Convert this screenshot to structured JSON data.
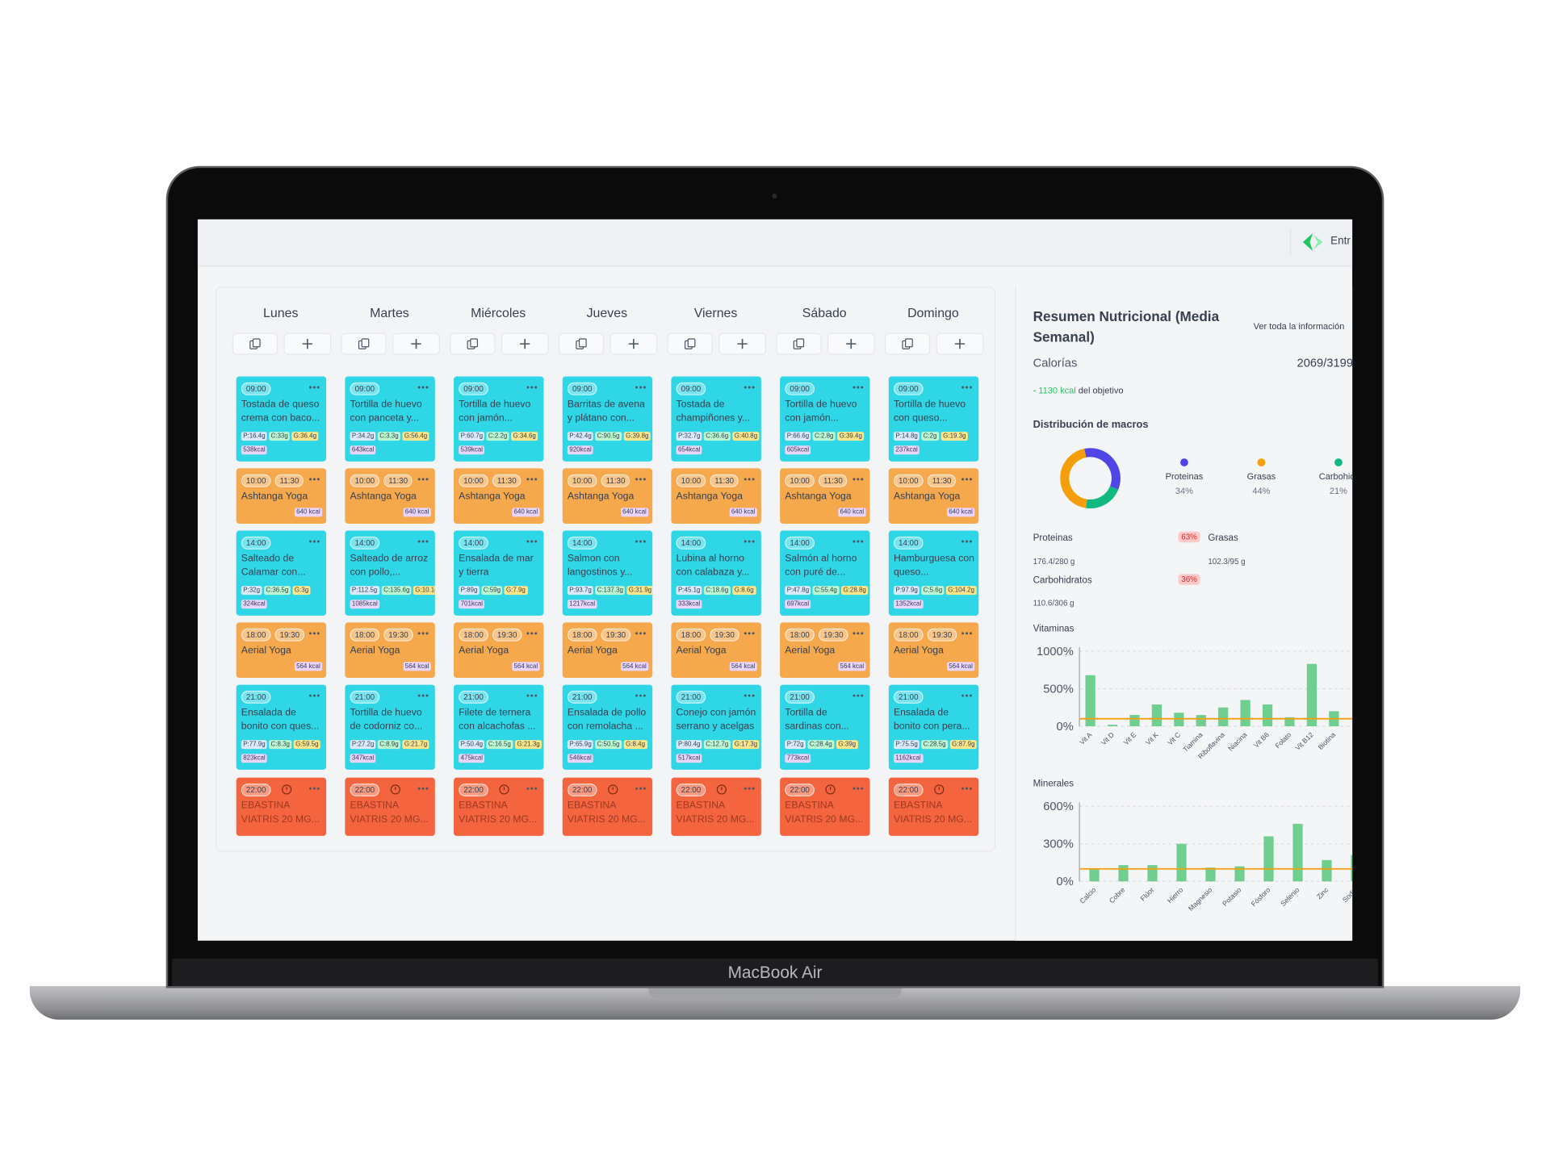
{
  "device_label": "MacBook Air",
  "header": {
    "button": "Entr"
  },
  "planner": {
    "days": [
      "Lunes",
      "Martes",
      "Miércoles",
      "Jueves",
      "Viernes",
      "Sábado",
      "Domingo"
    ],
    "rows": [
      {
        "kind": "meal",
        "cells": [
          {
            "time": "09:00",
            "title": "Tostada de queso crema con baco...",
            "tags": [
              "P:16.4g",
              "C:33g",
              "G:36.4g",
              "538kcal"
            ]
          },
          {
            "time": "09:00",
            "title": "Tortilla de huevo con panceta y...",
            "tags": [
              "P:34.2g",
              "C:3.3g",
              "G:56.4g",
              "643kcal"
            ]
          },
          {
            "time": "09:00",
            "title": "Tortilla de huevo con jamón...",
            "tags": [
              "P:60.7g",
              "C:2.2g",
              "G:34.6g",
              "539kcal"
            ]
          },
          {
            "time": "09:00",
            "title": "Barritas de avena y plátano con...",
            "tags": [
              "P:42.4g",
              "C:90.5g",
              "G:39.8g",
              "920kcal"
            ]
          },
          {
            "time": "09:00",
            "title": "Tostada de champiñones y...",
            "tags": [
              "P:32.7g",
              "C:36.6g",
              "G:40.8g",
              "654kcal"
            ]
          },
          {
            "time": "09:00",
            "title": "Tortilla de huevo con jamón...",
            "tags": [
              "P:66.6g",
              "C:2.8g",
              "G:39.4g",
              "605kcal"
            ]
          },
          {
            "time": "09:00",
            "title": "Tortilla de huevo con queso...",
            "tags": [
              "P:14.8g",
              "C:2g",
              "G:19.3g",
              "237kcal"
            ]
          }
        ]
      },
      {
        "kind": "activity",
        "cells": [
          {
            "time": "10:00",
            "end": "11:30",
            "title": "Ashtanga Yoga",
            "kcal": "640 kcal"
          },
          {
            "time": "10:00",
            "end": "11:30",
            "title": "Ashtanga Yoga",
            "kcal": "640 kcal"
          },
          {
            "time": "10:00",
            "end": "11:30",
            "title": "Ashtanga Yoga",
            "kcal": "640 kcal"
          },
          {
            "time": "10:00",
            "end": "11:30",
            "title": "Ashtanga Yoga",
            "kcal": "640 kcal"
          },
          {
            "time": "10:00",
            "end": "11:30",
            "title": "Ashtanga Yoga",
            "kcal": "640 kcal"
          },
          {
            "time": "10:00",
            "end": "11:30",
            "title": "Ashtanga Yoga",
            "kcal": "640 kcal"
          },
          {
            "time": "10:00",
            "end": "11:30",
            "title": "Ashtanga Yoga",
            "kcal": "640 kcal"
          }
        ]
      },
      {
        "kind": "meal",
        "cells": [
          {
            "time": "14:00",
            "title": "Salteado de Calamar con...",
            "tags": [
              "P:32g",
              "C:36.5g",
              "G:3g",
              "324kcal"
            ]
          },
          {
            "time": "14:00",
            "title": "Salteado de arroz con pollo,...",
            "tags": [
              "P:112.5g",
              "C:135.6g",
              "G:10.1g",
              "1085kcal"
            ]
          },
          {
            "time": "14:00",
            "title": "Ensalada de mar y tierra",
            "tags": [
              "P:89g",
              "C:59g",
              "G:7.9g",
              "701kcal"
            ]
          },
          {
            "time": "14:00",
            "title": "Salmon con langostinos y...",
            "tags": [
              "P:93.7g",
              "C:137.3g",
              "G:31.9g",
              "1217kcal"
            ]
          },
          {
            "time": "14:00",
            "title": "Lubina al horno con calabaza y...",
            "tags": [
              "P:45.1g",
              "C:18.6g",
              "G:8.6g",
              "333kcal"
            ]
          },
          {
            "time": "14:00",
            "title": "Salmón al horno con puré de...",
            "tags": [
              "P:47.8g",
              "C:55.4g",
              "G:28.8g",
              "697kcal"
            ]
          },
          {
            "time": "14:00",
            "title": "Hamburguesa con queso...",
            "tags": [
              "P:97.9g",
              "C:5.6g",
              "G:104.2g",
              "1352kcal"
            ]
          }
        ]
      },
      {
        "kind": "activity",
        "cells": [
          {
            "time": "18:00",
            "end": "19:30",
            "title": "Aerial Yoga",
            "kcal": "564 kcal"
          },
          {
            "time": "18:00",
            "end": "19:30",
            "title": "Aerial Yoga",
            "kcal": "564 kcal"
          },
          {
            "time": "18:00",
            "end": "19:30",
            "title": "Aerial Yoga",
            "kcal": "564 kcal"
          },
          {
            "time": "18:00",
            "end": "19:30",
            "title": "Aerial Yoga",
            "kcal": "564 kcal"
          },
          {
            "time": "18:00",
            "end": "19:30",
            "title": "Aerial Yoga",
            "kcal": "564 kcal"
          },
          {
            "time": "18:00",
            "end": "19:30",
            "title": "Aerial Yoga",
            "kcal": "564 kcal"
          },
          {
            "time": "18:00",
            "end": "19:30",
            "title": "Aerial Yoga",
            "kcal": "564 kcal"
          }
        ]
      },
      {
        "kind": "meal",
        "cells": [
          {
            "time": "21:00",
            "title": "Ensalada de bonito con ques...",
            "tags": [
              "P:77.9g",
              "C:8.3g",
              "G:59.5g",
              "823kcal"
            ]
          },
          {
            "time": "21:00",
            "title": "Tortilla de huevo de codorniz co...",
            "tags": [
              "P:27.2g",
              "C:8.9g",
              "G:21.7g",
              "347kcal"
            ]
          },
          {
            "time": "21:00",
            "title": "Filete de ternera con alcachofas ...",
            "tags": [
              "P:50.4g",
              "C:16.5g",
              "G:21.3g",
              "475kcal"
            ]
          },
          {
            "time": "21:00",
            "title": "Ensalada de pollo con remolacha ...",
            "tags": [
              "P:65.9g",
              "C:50.5g",
              "G:8.4g",
              "546kcal"
            ]
          },
          {
            "time": "21:00",
            "title": "Conejo con jamón serrano y acelgas",
            "tags": [
              "P:80.4g",
              "C:12.7g",
              "G:17.3g",
              "517kcal"
            ]
          },
          {
            "time": "21:00",
            "title": "Tortilla de sardinas con...",
            "tags": [
              "P:72g",
              "C:28.4g",
              "G:39g",
              "773kcal"
            ]
          },
          {
            "time": "21:00",
            "title": "Ensalada de bonito con pera...",
            "tags": [
              "P:75.5g",
              "C:28.5g",
              "G:87.9g",
              "1162kcal"
            ]
          }
        ]
      },
      {
        "kind": "med",
        "cells": [
          {
            "time": "22:00",
            "title": "EBASTINA VIATRIS 20 MG..."
          },
          {
            "time": "22:00",
            "title": "EBASTINA VIATRIS 20 MG..."
          },
          {
            "time": "22:00",
            "title": "EBASTINA VIATRIS 20 MG..."
          },
          {
            "time": "22:00",
            "title": "EBASTINA VIATRIS 20 MG..."
          },
          {
            "time": "22:00",
            "title": "EBASTINA VIATRIS 20 MG..."
          },
          {
            "time": "22:00",
            "title": "EBASTINA VIATRIS 20 MG..."
          },
          {
            "time": "22:00",
            "title": "EBASTINA VIATRIS 20 MG..."
          }
        ]
      }
    ]
  },
  "summary": {
    "title": "Resumen Nutricional (Media Semanal)",
    "link": "Ver toda la información",
    "calories_label": "Calorías",
    "calories": "2069/3199",
    "deficit": "- 1130 kcal",
    "deficit_suffix": "del objetivo",
    "macros_title": "Distribución de macros",
    "macros": [
      {
        "name": "Proteinas",
        "value": 34,
        "label": "34%",
        "color": "#4f46e5"
      },
      {
        "name": "Grasas",
        "value": 44,
        "label": "44%",
        "color": "#f59e0b"
      },
      {
        "name": "Carbohidr",
        "value": 21,
        "label": "21%",
        "color": "#10b981"
      }
    ],
    "details": [
      {
        "name": "Proteinas",
        "badge": "63%",
        "amount": "176.4/280 g"
      },
      {
        "name": "Grasas",
        "amount": "102.3/95 g"
      },
      {
        "name": "Carbohidratos",
        "badge": "36%",
        "amount": "110.6/306 g"
      }
    ]
  },
  "vitamins": {
    "title": "Vitaminas",
    "categories": [
      "Vit A",
      "Vit D",
      "Vit E",
      "Vit K",
      "Vit C",
      "Tiamina",
      "Riboflavina",
      "Niacina",
      "Vit B6",
      "Folato",
      "Vit B12",
      "Biotina"
    ],
    "values": [
      680,
      20,
      150,
      290,
      180,
      150,
      250,
      350,
      290,
      120,
      830,
      200
    ],
    "ylim": [
      0,
      1000
    ],
    "yticks": [
      {
        "value": 0,
        "label": "0%"
      },
      {
        "value": 500,
        "label": "500%"
      },
      {
        "value": 1000,
        "label": "1000%"
      }
    ],
    "target": 100,
    "color": "#6fcf8f",
    "target_color": "#f59e0b"
  },
  "minerals": {
    "title": "Minerales",
    "categories": [
      "Calcio",
      "Cobre",
      "Flúor",
      "Hierro",
      "Magnesio",
      "Potasio",
      "Fósforo",
      "Selenio",
      "Zinc",
      "Sodio"
    ],
    "values": [
      100,
      130,
      130,
      300,
      110,
      120,
      360,
      460,
      170,
      210
    ],
    "ylim": [
      0,
      600
    ],
    "yticks": [
      {
        "value": 0,
        "label": "0%"
      },
      {
        "value": 300,
        "label": "300%"
      },
      {
        "value": 600,
        "label": "600%"
      }
    ],
    "target": 100,
    "color": "#6fcf8f",
    "target_color": "#f59e0b"
  }
}
